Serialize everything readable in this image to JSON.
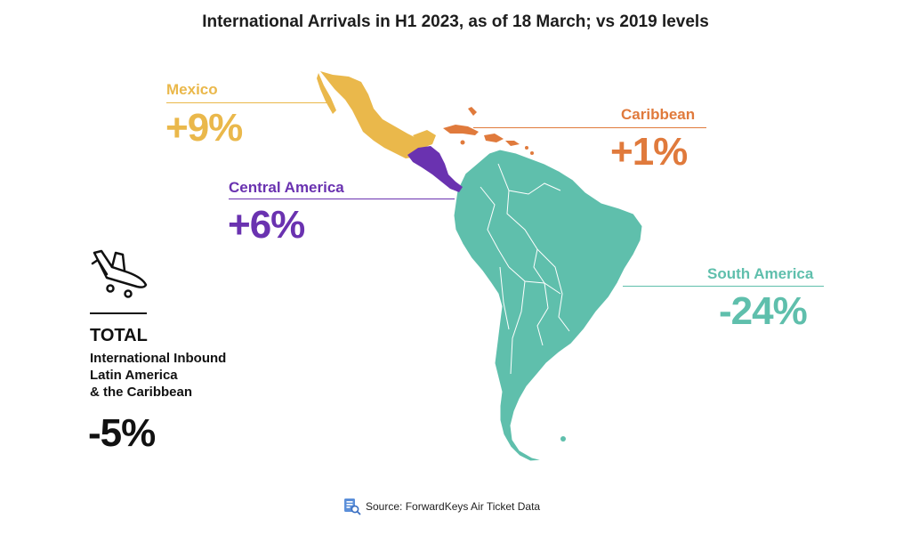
{
  "title": "International Arrivals in H1 2023, as of 18 March; vs 2019 levels",
  "colors": {
    "mexico": "#eab84b",
    "caribbean": "#e07a3c",
    "central_america": "#6a32b0",
    "south_america": "#5fbfac",
    "total": "#111111"
  },
  "regions": {
    "mexico": {
      "name": "Mexico",
      "value": "+9%"
    },
    "caribbean": {
      "name": "Caribbean",
      "value": "+1%"
    },
    "central_america": {
      "name": "Central America",
      "value": "+6%"
    },
    "south_america": {
      "name": "South America",
      "value": "-24%"
    }
  },
  "total": {
    "icon": "plane-landing-icon",
    "heading": "TOTAL",
    "lines": [
      "International Inbound",
      "Latin America",
      "& the Caribbean"
    ],
    "value": "-5%"
  },
  "source": {
    "icon": "document-search-icon",
    "text": "Source: ForwardKeys Air Ticket Data"
  }
}
